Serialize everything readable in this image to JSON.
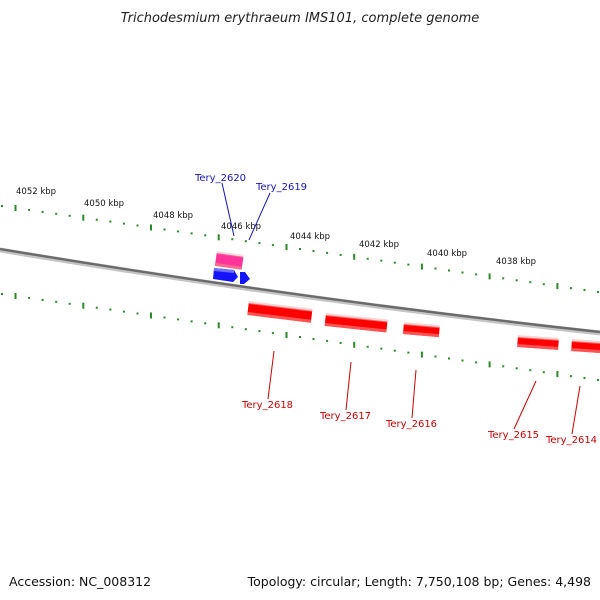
{
  "title": "Trichodesmium erythraeum IMS101, complete genome",
  "accession_text": "Accession: NC_008312",
  "summary_text": "Topology: circular; Length: 7,750,108 bp; Genes: 4,498",
  "colors": {
    "backbone": "#8a8a8a",
    "scale_ticks": "#2a8a2a",
    "forward_highlight": "#ff3399",
    "forward_gene": "#1414ff",
    "forward_label": "#1414bb",
    "reverse_gene": "#ff0000",
    "reverse_label": "#cc0000"
  },
  "scale_labels": [
    "4052 kbp",
    "4050 kbp",
    "4048 kbp",
    "4046 kbp",
    "4044 kbp",
    "4042 kbp",
    "4040 kbp",
    "4038 kbp"
  ],
  "genes": [
    {
      "id": "Tery_2620",
      "strand": "forward",
      "highlight": true
    },
    {
      "id": "Tery_2619",
      "strand": "forward",
      "highlight": false
    },
    {
      "id": "Tery_2618",
      "strand": "reverse",
      "highlight": false
    },
    {
      "id": "Tery_2617",
      "strand": "reverse",
      "highlight": false
    },
    {
      "id": "Tery_2616",
      "strand": "reverse",
      "highlight": false
    },
    {
      "id": "Tery_2615",
      "strand": "reverse",
      "highlight": false
    },
    {
      "id": "Tery_2614",
      "strand": "reverse",
      "highlight": false
    }
  ]
}
